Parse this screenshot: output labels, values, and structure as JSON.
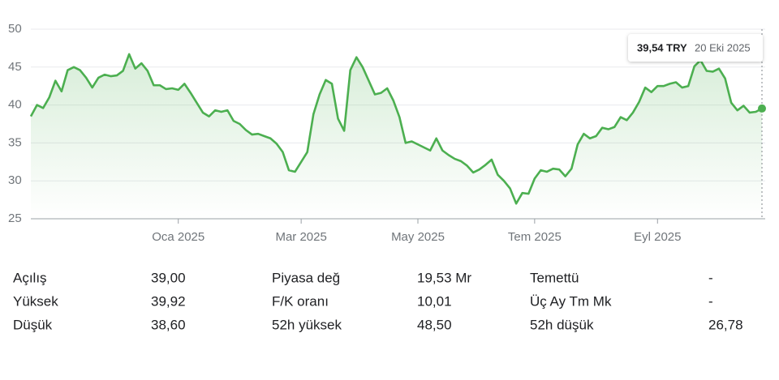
{
  "chart_data": {
    "type": "line",
    "color": "#4caf50",
    "categories": [
      null,
      null,
      null,
      null,
      null,
      null,
      null,
      null,
      null,
      null,
      null,
      null,
      null,
      null,
      null,
      null,
      null,
      null,
      null,
      null,
      null,
      null,
      null,
      null,
      "Oca 2025",
      null,
      null,
      null,
      null,
      null,
      null,
      null,
      null,
      null,
      null,
      null,
      null,
      null,
      null,
      null,
      null,
      null,
      null,
      null,
      "Mar 2025",
      null,
      null,
      null,
      null,
      null,
      null,
      null,
      null,
      null,
      null,
      null,
      null,
      null,
      null,
      null,
      null,
      null,
      null,
      "May 2025",
      null,
      null,
      null,
      null,
      null,
      null,
      null,
      null,
      null,
      null,
      null,
      null,
      null,
      null,
      null,
      null,
      null,
      null,
      "Tem 2025",
      null,
      null,
      null,
      null,
      null,
      null,
      null,
      null,
      null,
      null,
      null,
      null,
      null,
      null,
      null,
      null,
      null,
      null,
      null,
      "Eyl 2025",
      null,
      null,
      null,
      null,
      null,
      null,
      null,
      null,
      null,
      null,
      null,
      null,
      null,
      null,
      null,
      null,
      null
    ],
    "values": [
      38.5,
      40.0,
      39.6,
      41.0,
      43.2,
      41.8,
      44.6,
      45.0,
      44.6,
      43.6,
      42.3,
      43.6,
      44.0,
      43.8,
      43.9,
      44.5,
      46.7,
      44.8,
      45.5,
      44.5,
      42.6,
      42.6,
      42.1,
      42.2,
      42.0,
      42.8,
      41.6,
      40.3,
      39.0,
      38.5,
      39.3,
      39.1,
      39.3,
      37.9,
      37.5,
      36.7,
      36.1,
      36.2,
      35.9,
      35.6,
      34.9,
      33.8,
      31.4,
      31.2,
      32.5,
      33.8,
      38.8,
      41.4,
      43.3,
      42.8,
      38.2,
      36.6,
      44.6,
      46.3,
      45.0,
      43.2,
      41.4,
      41.6,
      42.2,
      40.6,
      38.4,
      35.0,
      35.2,
      34.8,
      34.4,
      34.0,
      35.6,
      34.0,
      33.4,
      32.9,
      32.6,
      32.0,
      31.1,
      31.5,
      32.1,
      32.8,
      30.8,
      30.0,
      29.0,
      27.0,
      28.4,
      28.3,
      30.3,
      31.4,
      31.2,
      31.6,
      31.5,
      30.6,
      31.6,
      34.8,
      36.2,
      35.6,
      35.9,
      37.0,
      36.8,
      37.1,
      38.4,
      38.0,
      39.0,
      40.4,
      42.3,
      41.7,
      42.5,
      42.5,
      42.8,
      43.0,
      42.3,
      42.5,
      45.1,
      45.9,
      44.5,
      44.4,
      44.8,
      43.5,
      40.3,
      39.3,
      39.9,
      39.0,
      39.1,
      39.54
    ],
    "ylim": [
      25,
      50
    ],
    "yticks": [
      25,
      30,
      35,
      40,
      45,
      50
    ],
    "grid": true,
    "tooltip": {
      "price": "39,54 TRY",
      "date": "20 Eki 2025"
    }
  },
  "stats": {
    "rows": [
      [
        [
          "Açılış",
          "39,00"
        ],
        [
          "Piyasa değ",
          "19,53 Mr"
        ],
        [
          "Temettü",
          "-"
        ]
      ],
      [
        [
          "Yüksek",
          "39,92"
        ],
        [
          "F/K oranı",
          "10,01"
        ],
        [
          "Üç Ay Tm Mk",
          "-"
        ]
      ],
      [
        [
          "Düşük",
          "38,60"
        ],
        [
          "52h yüksek",
          "48,50"
        ],
        [
          "52h düşük",
          "26,78"
        ]
      ]
    ]
  }
}
